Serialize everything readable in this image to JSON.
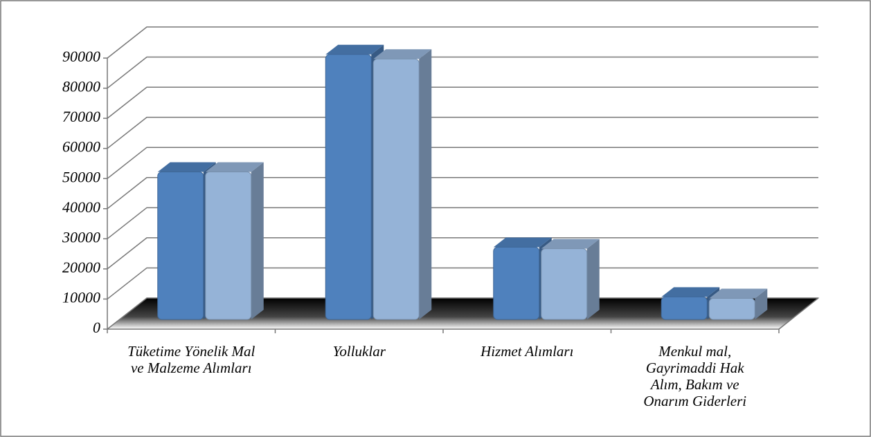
{
  "chart_data": {
    "type": "bar3d",
    "categories": [
      "Tüketime Yönelik Mal ve Malzeme Alımları",
      "Yolluklar",
      "Hizmet Alımları",
      "Menkul mal, Gayrimaddi Hak Alım, Bakım ve Onarım Giderleri"
    ],
    "series": [
      {
        "color": "#4f81bd",
        "values": [
          49000,
          88000,
          24000,
          7500
        ]
      },
      {
        "color": "#95b3d7",
        "values": [
          49000,
          86500,
          23500,
          7000
        ]
      }
    ],
    "ylim": [
      0,
      90000
    ],
    "yticks": [
      0,
      10000,
      20000,
      30000,
      40000,
      50000,
      60000,
      70000,
      80000,
      90000
    ],
    "grid": true
  }
}
